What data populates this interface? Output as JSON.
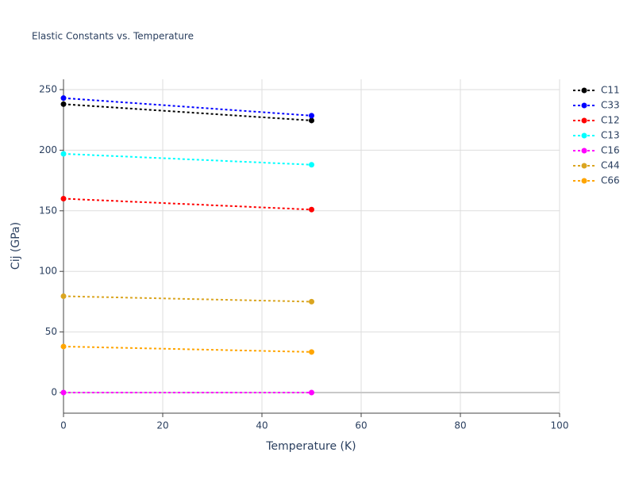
{
  "chart_data": {
    "type": "line",
    "title": "Elastic Constants vs. Temperature",
    "x_label": "Temperature (K)",
    "y_label": "Cij (GPa)",
    "x": [
      0,
      50
    ],
    "series": [
      {
        "name": "C11",
        "color": "#000000",
        "values": [
          238,
          224.5
        ]
      },
      {
        "name": "C33",
        "color": "#0000ff",
        "values": [
          243,
          228.5
        ]
      },
      {
        "name": "C12",
        "color": "#ff0000",
        "values": [
          160,
          151
        ]
      },
      {
        "name": "C13",
        "color": "#00ffff",
        "values": [
          197,
          188
        ]
      },
      {
        "name": "C16",
        "color": "#ff00ff",
        "values": [
          0,
          0
        ]
      },
      {
        "name": "C44",
        "color": "#daa520",
        "values": [
          79.5,
          75
        ]
      },
      {
        "name": "C66",
        "color": "#ffa500",
        "values": [
          38,
          33.5
        ]
      }
    ],
    "xlim": [
      0,
      100
    ],
    "xticks": [
      0,
      20,
      40,
      60,
      80,
      100
    ],
    "ylim": [
      -17,
      258.5
    ],
    "yticks": [
      0,
      50,
      100,
      150,
      200,
      250
    ],
    "grid": true,
    "legend": "right",
    "line_style": "dotted"
  }
}
